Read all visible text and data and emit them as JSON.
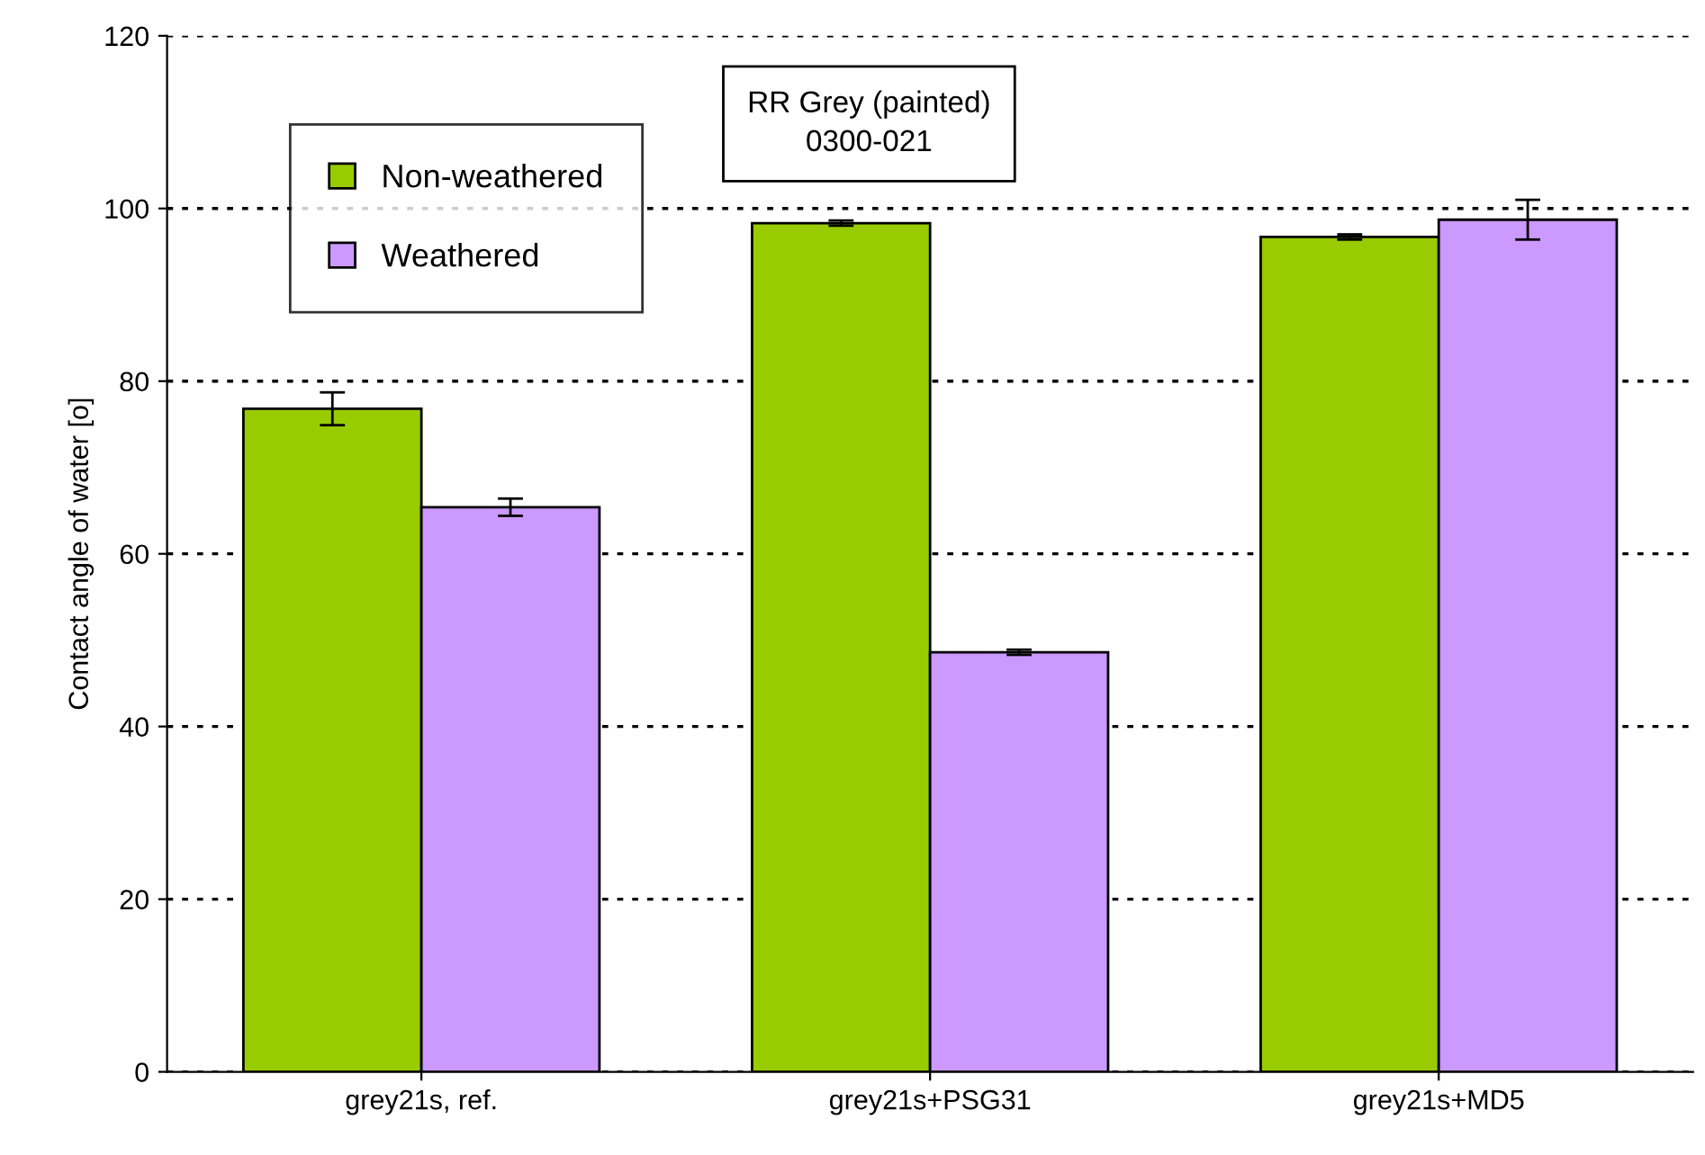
{
  "chart_data": {
    "type": "bar",
    "categories": [
      "grey21s, ref.",
      "grey21s+PSG31",
      "grey21s+MD5"
    ],
    "ylabel": "Contact angle of water [o]",
    "annotations": [
      "RR Grey (painted)\n0300-021"
    ],
    "series": [
      {
        "name": "Non-weathered",
        "color": "#99cc00",
        "values": [
          76.8,
          98.3,
          96.7
        ],
        "errors": [
          1.9,
          0.3,
          0.3
        ]
      },
      {
        "name": "Weathered",
        "color": "#cc99ff",
        "values": [
          65.4,
          48.6,
          98.7
        ],
        "errors": [
          1.0,
          0.3,
          2.3
        ]
      }
    ],
    "ylim": [
      0,
      120
    ],
    "yticks": [
      0,
      20,
      40,
      60,
      80,
      100,
      120
    ],
    "grid": "y",
    "legend": "top left"
  }
}
